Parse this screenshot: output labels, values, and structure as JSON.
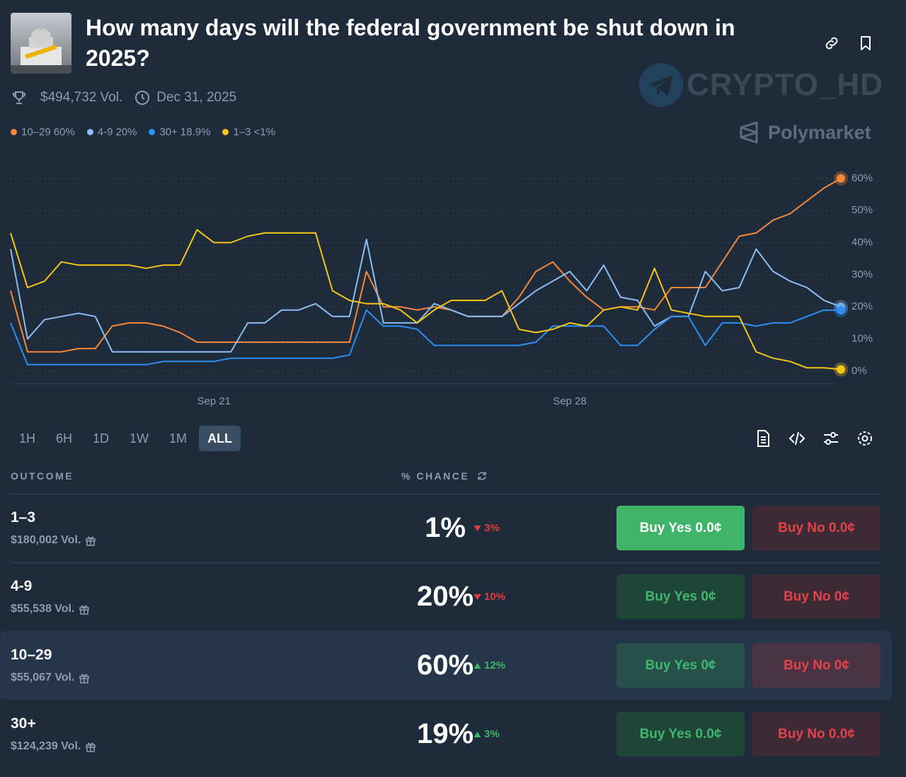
{
  "header": {
    "title": "How many days will the federal government be shut down in 2025?",
    "volume": "$494,732 Vol.",
    "end_date": "Dec 31, 2025",
    "watermark": "CRYPTO_HD",
    "brand": "Polymarket"
  },
  "chart_data": {
    "type": "line",
    "categories": [
      null,
      null,
      null,
      null,
      null,
      null,
      null,
      null,
      null,
      null,
      null,
      null,
      "Sep 21",
      null,
      null,
      null,
      null,
      null,
      null,
      null,
      null,
      null,
      null,
      null,
      null,
      null,
      null,
      null,
      null,
      null,
      null,
      null,
      null,
      "Sep 28",
      null,
      null,
      null,
      null,
      null,
      null,
      null,
      null,
      null,
      null,
      null,
      null,
      null,
      null,
      null,
      null
    ],
    "series": [
      {
        "name": "10–29",
        "last_label": "60%",
        "color": "#f5883a",
        "values": [
          25,
          6,
          6,
          6,
          7,
          7,
          14,
          15,
          15,
          14,
          12,
          9,
          9,
          9,
          9,
          9,
          9,
          9,
          9,
          9,
          9,
          31,
          20,
          20,
          19,
          20,
          19,
          17,
          17,
          17,
          23,
          31,
          34,
          28,
          23,
          19,
          20,
          20,
          19,
          26,
          26,
          26,
          34,
          42,
          43,
          47,
          49,
          53,
          57,
          60
        ]
      },
      {
        "name": "4-9",
        "last_label": "20%",
        "color": "#8fbcf2",
        "values": [
          38,
          10,
          16,
          17,
          18,
          17,
          6,
          6,
          6,
          6,
          6,
          6,
          6,
          6,
          15,
          15,
          19,
          19,
          21,
          17,
          17,
          41,
          15,
          15,
          15,
          21,
          19,
          17,
          17,
          17,
          21,
          25,
          28,
          31,
          25,
          33,
          23,
          22,
          14,
          17,
          17,
          31,
          25,
          26,
          38,
          31,
          28,
          26,
          22,
          20
        ]
      },
      {
        "name": "30+",
        "last_label": "18.9%",
        "color": "#2f8ff0",
        "values": [
          15,
          2,
          2,
          2,
          2,
          2,
          2,
          2,
          2,
          3,
          3,
          3,
          3,
          4,
          4,
          4,
          4,
          4,
          4,
          4,
          5,
          19,
          14,
          14,
          13,
          8,
          8,
          8,
          8,
          8,
          8,
          9,
          14,
          14,
          14,
          14,
          8,
          8,
          13,
          17,
          17,
          8,
          15,
          15,
          14,
          15,
          15,
          17,
          19,
          18.9
        ]
      },
      {
        "name": "1–3",
        "last_label": "<1%",
        "color": "#f5c518",
        "values": [
          43,
          26,
          28,
          34,
          33,
          33,
          33,
          33,
          32,
          33,
          33,
          44,
          40,
          40,
          42,
          43,
          43,
          43,
          43,
          25,
          22,
          21,
          21,
          19,
          15,
          19,
          22,
          22,
          22,
          25,
          13,
          12,
          13,
          15,
          14,
          19,
          20,
          19,
          32,
          19,
          18,
          17,
          17,
          17,
          6,
          4,
          3,
          1,
          1,
          0.5
        ]
      }
    ],
    "ylim": [
      -4,
      65
    ],
    "yticks": [
      {
        "value": 0,
        "label": "0%"
      },
      {
        "value": 10,
        "label": "10%"
      },
      {
        "value": 20,
        "label": "20%"
      },
      {
        "value": 30,
        "label": "30%"
      },
      {
        "value": 40,
        "label": "40%"
      },
      {
        "value": 50,
        "label": "50%"
      },
      {
        "value": 60,
        "label": "60%"
      }
    ],
    "grid": true
  },
  "time_ranges": [
    "1H",
    "6H",
    "1D",
    "1W",
    "1M",
    "ALL"
  ],
  "active_range": "ALL",
  "table": {
    "headers": [
      "OUTCOME",
      "% CHANCE"
    ],
    "rows": [
      {
        "outcome": "1–3",
        "volume": "$180,002 Vol.",
        "chance": "1%",
        "change": "3%",
        "direction": "down",
        "buy_yes": "Buy Yes 0.0¢",
        "buy_no": "Buy No 0.0¢",
        "selected": true,
        "highlighted": false
      },
      {
        "outcome": "4-9",
        "volume": "$55,538 Vol.",
        "chance": "20%",
        "change": "10%",
        "direction": "down",
        "buy_yes": "Buy Yes 0¢",
        "buy_no": "Buy No 0¢",
        "selected": false,
        "highlighted": false
      },
      {
        "outcome": "10–29",
        "volume": "$55,067 Vol.",
        "chance": "60%",
        "change": "12%",
        "direction": "up",
        "buy_yes": "Buy Yes 0¢",
        "buy_no": "Buy No 0¢",
        "selected": false,
        "highlighted": true
      },
      {
        "outcome": "30+",
        "volume": "$124,239 Vol.",
        "chance": "19%",
        "change": "3%",
        "direction": "up",
        "buy_yes": "Buy Yes 0.0¢",
        "buy_no": "Buy No 0.0¢",
        "selected": false,
        "highlighted": false
      }
    ]
  }
}
